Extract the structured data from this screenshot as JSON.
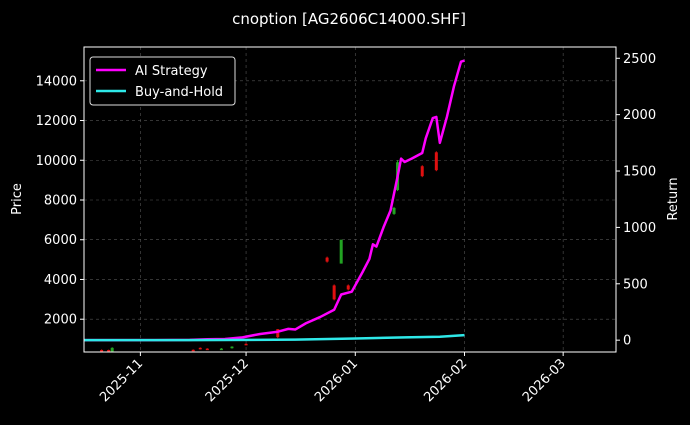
{
  "chart_data": {
    "type": "line",
    "title": "cnoption [AG2606C14000.SHF]",
    "y_left_label": "Price",
    "y_right_label": "Return",
    "x_ticks": [
      "2025-11",
      "2025-12",
      "2026-01",
      "2026-02",
      "2026-03"
    ],
    "x_range": [
      "2025-10-16",
      "2026-03-16"
    ],
    "y_left_ticks": [
      2000,
      4000,
      6000,
      8000,
      10000,
      12000,
      14000
    ],
    "y_left_range": [
      350,
      15700
    ],
    "y_right_ticks": [
      0,
      500,
      1000,
      1500,
      2000,
      2500
    ],
    "y_right_range": [
      -105,
      2600
    ],
    "grid": true,
    "legend_position": "top-left",
    "colors": {
      "ai_strategy": "#ff00ff",
      "buy_and_hold": "#2ee8e8",
      "candle_up": "#22a322",
      "candle_down": "#e01010",
      "background": "#000000",
      "grid": "#555555"
    },
    "series": [
      {
        "name": "AI Strategy",
        "axis": "right",
        "points": [
          [
            "2025-10-16",
            0
          ],
          [
            "2025-10-25",
            0
          ],
          [
            "2025-11-05",
            0
          ],
          [
            "2025-11-15",
            3
          ],
          [
            "2025-11-20",
            8
          ],
          [
            "2025-11-25",
            10
          ],
          [
            "2025-11-30",
            25
          ],
          [
            "2025-12-05",
            55
          ],
          [
            "2025-12-10",
            75
          ],
          [
            "2025-12-13",
            100
          ],
          [
            "2025-12-15",
            95
          ],
          [
            "2025-12-18",
            150
          ],
          [
            "2025-12-22",
            205
          ],
          [
            "2025-12-26",
            270
          ],
          [
            "2025-12-28",
            405
          ],
          [
            "2025-12-31",
            430
          ],
          [
            "2026-01-03",
            600
          ],
          [
            "2026-01-05",
            720
          ],
          [
            "2026-01-06",
            850
          ],
          [
            "2026-01-07",
            830
          ],
          [
            "2026-01-09",
            1000
          ],
          [
            "2026-01-11",
            1150
          ],
          [
            "2026-01-13",
            1450
          ],
          [
            "2026-01-14",
            1610
          ],
          [
            "2026-01-15",
            1580
          ],
          [
            "2026-01-17",
            1610
          ],
          [
            "2026-01-20",
            1660
          ],
          [
            "2026-01-21",
            1790
          ],
          [
            "2026-01-23",
            1970
          ],
          [
            "2026-01-24",
            1980
          ],
          [
            "2026-01-25",
            1750
          ],
          [
            "2026-01-27",
            1980
          ],
          [
            "2026-01-29",
            2250
          ],
          [
            "2026-01-31",
            2470
          ],
          [
            "2026-02-01",
            2480
          ]
        ]
      },
      {
        "name": "Buy-and-Hold",
        "axis": "right",
        "points": [
          [
            "2025-10-16",
            0
          ],
          [
            "2025-11-15",
            0
          ],
          [
            "2025-12-15",
            5
          ],
          [
            "2026-01-01",
            15
          ],
          [
            "2026-01-15",
            25
          ],
          [
            "2026-01-25",
            30
          ],
          [
            "2026-02-01",
            45
          ]
        ]
      }
    ],
    "candles": [
      {
        "date": "2025-10-21",
        "open": 450,
        "close": 400,
        "high": 480,
        "low": 380
      },
      {
        "date": "2025-10-23",
        "open": 450,
        "close": 420,
        "high": 470,
        "low": 400
      },
      {
        "date": "2025-10-24",
        "open": 380,
        "close": 560,
        "high": 590,
        "low": 370
      },
      {
        "date": "2025-11-16",
        "open": 460,
        "close": 440,
        "high": 480,
        "low": 420
      },
      {
        "date": "2025-11-18",
        "open": 560,
        "close": 500,
        "high": 580,
        "low": 480
      },
      {
        "date": "2025-11-20",
        "open": 520,
        "close": 480,
        "high": 540,
        "low": 460
      },
      {
        "date": "2025-11-24",
        "open": 480,
        "close": 520,
        "high": 550,
        "low": 460
      },
      {
        "date": "2025-11-27",
        "open": 540,
        "close": 620,
        "high": 640,
        "low": 520
      },
      {
        "date": "2025-12-01",
        "open": 760,
        "close": 720,
        "high": 780,
        "low": 700
      },
      {
        "date": "2025-12-10",
        "open": 1500,
        "close": 1100,
        "high": 1500,
        "low": 1050
      },
      {
        "date": "2025-12-26",
        "open": 3700,
        "close": 3000,
        "high": 3750,
        "low": 2950
      },
      {
        "date": "2025-12-28",
        "open": 4800,
        "close": 6000,
        "high": 6000,
        "low": 4800
      },
      {
        "date": "2025-12-24",
        "open": 5100,
        "close": 4900,
        "high": 5150,
        "low": 4850
      },
      {
        "date": "2025-12-30",
        "open": 3700,
        "close": 3500,
        "high": 3750,
        "low": 3450
      },
      {
        "date": "2026-01-12",
        "open": 7300,
        "close": 7600,
        "high": 7650,
        "low": 7250
      },
      {
        "date": "2026-01-13",
        "open": 8500,
        "close": 9900,
        "high": 10000,
        "low": 8450
      },
      {
        "date": "2026-01-20",
        "open": 9700,
        "close": 9200,
        "high": 9750,
        "low": 9150
      },
      {
        "date": "2026-01-24",
        "open": 10400,
        "close": 9500,
        "high": 10450,
        "low": 9450
      }
    ]
  }
}
